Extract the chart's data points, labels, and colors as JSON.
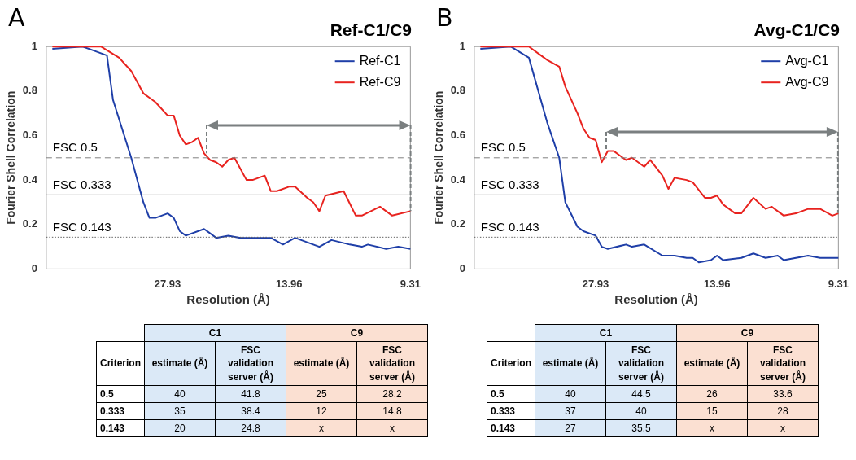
{
  "chart_data": [
    {
      "type": "line",
      "title": "Ref-C1/C9",
      "xlabel": "Resolution (Å)",
      "ylabel": "Fourier Shell Correlation",
      "annotations": [
        "A"
      ],
      "legend": "top right",
      "ylim": [
        0,
        1
      ],
      "yticks": [
        0,
        0.2,
        0.4,
        0.6,
        0.8,
        1
      ],
      "categories": [
        null,
        null,
        null,
        null,
        null,
        null,
        null,
        null,
        null,
        null,
        null,
        null,
        null,
        null,
        null,
        null,
        null,
        null,
        null,
        null,
        "27.93",
        null,
        null,
        null,
        null,
        null,
        null,
        null,
        null,
        null,
        null,
        null,
        null,
        null,
        null,
        null,
        null,
        null,
        null,
        null,
        "13.96",
        null,
        null,
        null,
        null,
        null,
        null,
        null,
        null,
        null,
        null,
        null,
        null,
        null,
        null,
        null,
        null,
        null,
        null,
        null,
        "9.31"
      ],
      "ref_lines": [
        {
          "axis": "y",
          "value": 0.5,
          "label": "FSC 0.5",
          "color": "#808080",
          "line_style": "dashed"
        },
        {
          "axis": "y",
          "value": 0.333,
          "label": "FSC 0.333",
          "color": "#000000",
          "line_style": "solid"
        },
        {
          "axis": "y",
          "value": 0.143,
          "label": "FSC 0.143",
          "color": "#606060",
          "line_style": "dotted"
        }
      ],
      "series": [
        {
          "name": "Ref-C1",
          "color": "#1f3fa8",
          "values": [
            null,
            0.99,
            null,
            null,
            null,
            null,
            1.0,
            null,
            0.98,
            null,
            0.96,
            0.76,
            null,
            null,
            0.5,
            null,
            0.3,
            0.23,
            0.23,
            null,
            0.25,
            0.23,
            0.17,
            0.15,
            null,
            null,
            0.18,
            null,
            0.14,
            null,
            0.15,
            null,
            0.14,
            0.14,
            null,
            0.14,
            null,
            0.14,
            null,
            0.11,
            null,
            0.14,
            null,
            0.12,
            null,
            0.1,
            null,
            0.13,
            null,
            null,
            0.11,
            null,
            0.1,
            0.11,
            null,
            null,
            0.09,
            null,
            0.1,
            null,
            0.09
          ]
        },
        {
          "name": "Ref-C9",
          "color": "#e8231f",
          "values": [
            null,
            1.0,
            null,
            null,
            null,
            null,
            null,
            null,
            null,
            1.0,
            null,
            null,
            0.95,
            null,
            0.89,
            null,
            0.79,
            0.77,
            0.75,
            null,
            0.69,
            0.69,
            0.6,
            0.56,
            0.57,
            0.59,
            0.52,
            0.49,
            0.48,
            0.46,
            0.49,
            0.5,
            null,
            0.4,
            0.4,
            null,
            0.42,
            0.35,
            0.35,
            null,
            0.37,
            0.37,
            null,
            0.32,
            0.3,
            0.26,
            0.33,
            null,
            null,
            0.35,
            null,
            0.24,
            0.24,
            null,
            null,
            0.28,
            null,
            0.24,
            null,
            null,
            0.26
          ]
        }
      ]
    },
    {
      "type": "other",
      "annotations": [
        "C1",
        "C9",
        "Criterion",
        "estimate (Å)",
        "FSC validation server (Å)",
        "estimate (Å)",
        "FSC validation server (Å)",
        "0.5",
        "40",
        "41.8",
        "25",
        "28.2",
        "0.333",
        "35",
        "38.4",
        "12",
        "14.8",
        "0.143",
        "20",
        "24.8",
        "x",
        "x"
      ]
    },
    {
      "type": "line",
      "title": "Avg-C1/C9",
      "xlabel": "Resolution (Å)",
      "ylabel": "Fourier Shell Correlation",
      "annotations": [
        "B"
      ],
      "legend": "top right",
      "ylim": [
        0,
        1
      ],
      "yticks": [
        0,
        0.2,
        0.4,
        0.6,
        0.8,
        1
      ],
      "categories": [
        null,
        null,
        null,
        null,
        null,
        null,
        null,
        null,
        null,
        null,
        null,
        null,
        null,
        null,
        null,
        null,
        null,
        null,
        null,
        null,
        "27.93",
        null,
        null,
        null,
        null,
        null,
        null,
        null,
        null,
        null,
        null,
        null,
        null,
        null,
        null,
        null,
        null,
        null,
        null,
        null,
        "13.96",
        null,
        null,
        null,
        null,
        null,
        null,
        null,
        null,
        null,
        null,
        null,
        null,
        null,
        null,
        null,
        null,
        null,
        null,
        null,
        "9.31"
      ],
      "ref_lines": [
        {
          "axis": "y",
          "value": 0.5,
          "label": "FSC 0.5",
          "color": "#808080",
          "line_style": "dashed"
        },
        {
          "axis": "y",
          "value": 0.333,
          "label": "FSC 0.333",
          "color": "#000000",
          "line_style": "solid"
        },
        {
          "axis": "y",
          "value": 0.143,
          "label": "FSC 0.143",
          "color": "#606060",
          "line_style": "dotted"
        }
      ],
      "series": [
        {
          "name": "Avg-C1",
          "color": "#1f3fa8",
          "values": [
            null,
            0.99,
            null,
            null,
            null,
            null,
            1.0,
            null,
            null,
            0.95,
            null,
            null,
            0.66,
            null,
            0.5,
            0.3,
            null,
            0.19,
            0.17,
            null,
            0.15,
            0.1,
            0.09,
            null,
            null,
            0.11,
            0.1,
            null,
            0.11,
            null,
            null,
            0.06,
            null,
            0.06,
            null,
            0.05,
            0.05,
            0.03,
            null,
            0.04,
            0.06,
            0.04,
            null,
            null,
            0.05,
            null,
            0.07,
            null,
            0.05,
            null,
            0.06,
            0.04,
            null,
            0.05,
            null,
            0.06,
            null,
            0.05,
            null,
            null,
            0.05
          ]
        },
        {
          "name": "Avg-C9",
          "color": "#e8231f",
          "values": [
            null,
            1.0,
            null,
            null,
            null,
            null,
            null,
            null,
            null,
            1.0,
            null,
            0.96,
            0.94,
            null,
            0.91,
            0.82,
            null,
            0.7,
            0.63,
            0.59,
            0.58,
            0.48,
            0.53,
            0.53,
            null,
            0.49,
            0.5,
            null,
            0.46,
            0.49,
            null,
            0.42,
            0.36,
            0.41,
            null,
            0.4,
            0.39,
            null,
            0.32,
            0.32,
            0.33,
            0.29,
            null,
            0.25,
            0.25,
            null,
            0.32,
            null,
            0.27,
            0.28,
            null,
            0.24,
            null,
            0.25,
            null,
            0.27,
            null,
            0.27,
            null,
            0.24,
            0.25
          ]
        }
      ]
    },
    {
      "type": "other",
      "annotations": [
        "C1",
        "C9",
        "Criterion",
        "estimate (Å)",
        "FSC validation server (Å)",
        "estimate (Å)",
        "FSC validation server (Å)",
        "0.5",
        "40",
        "44.5",
        "26",
        "33.6",
        "0.333",
        "37",
        "40",
        "15",
        "28",
        "0.143",
        "27",
        "35.5",
        "x",
        "x"
      ]
    }
  ]
}
